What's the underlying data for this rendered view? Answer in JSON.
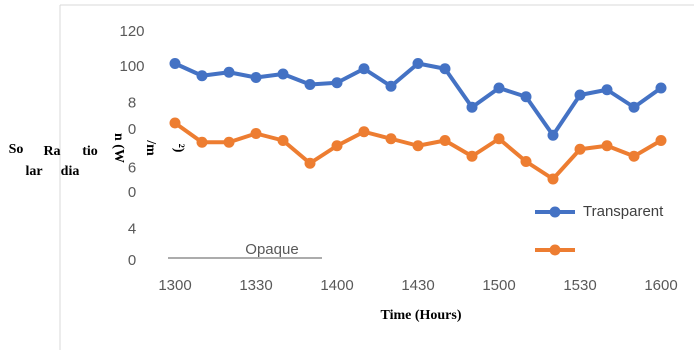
{
  "chart_data": {
    "type": "line",
    "x_label": "Time (Hours)",
    "y_label_parts": [
      "So",
      "lar",
      "Ra",
      "dia",
      "tio",
      "n (W",
      "/m",
      "²)"
    ],
    "categories": [
      "1300",
      null,
      null,
      "1330",
      null,
      null,
      "1400",
      null,
      null,
      "1430",
      null,
      null,
      "1500",
      null,
      null,
      "1530",
      null,
      null,
      "1600"
    ],
    "series": [
      {
        "name": "Transparent",
        "color": "#4472c4",
        "values": [
          102,
          95,
          97,
          94,
          96,
          90,
          91,
          99,
          89,
          102,
          99,
          77,
          88,
          83,
          61,
          84,
          87,
          77,
          88
        ]
      },
      {
        "name": "Opaque",
        "color": "#ed7d31",
        "values": [
          68,
          57,
          57,
          62,
          58,
          45,
          55,
          63,
          59,
          55,
          58,
          49,
          59,
          46,
          36,
          53,
          55,
          49,
          58
        ]
      }
    ],
    "ylim": [
      -15,
      125
    ],
    "yticks": [
      120,
      100,
      {
        "value": 79,
        "label": "8"
      },
      {
        "value": 64,
        "label": "0"
      },
      {
        "value": 42,
        "label": "6"
      },
      {
        "value": 28,
        "label": "0"
      },
      {
        "value": 7,
        "label": "4"
      },
      {
        "value": -11,
        "label": "0"
      }
    ],
    "grid": false
  }
}
